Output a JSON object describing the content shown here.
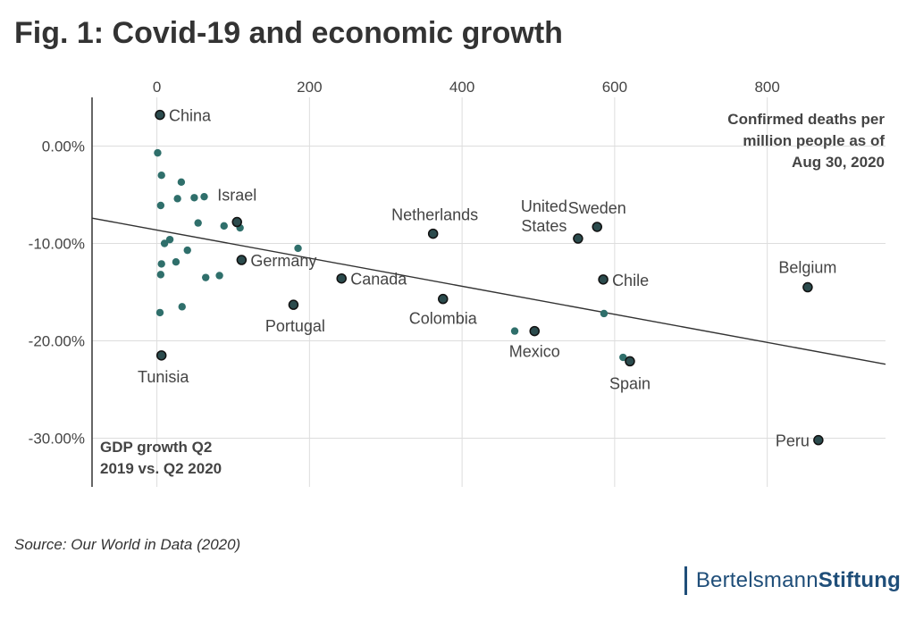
{
  "title": "Fig. 1: Covid-19 and economic growth",
  "source": "Source: Our World in Data (2020)",
  "brand": {
    "part1": "Bertelsmann",
    "part2": "Stiftung"
  },
  "colors": {
    "point": "#2f6f6b",
    "highlight": "#2b4b4d",
    "grid": "#dddddd",
    "axis": "#333333",
    "brand": "#1f4e79"
  },
  "chart_data": {
    "type": "scatter",
    "title": "Fig. 1: Covid-19 and economic growth",
    "xlabel_lines": [
      "Confirmed deaths per",
      "million people as of",
      "Aug 30, 2020"
    ],
    "ylabel_lines": [
      "GDP growth Q2",
      "2019 vs. Q2 2020"
    ],
    "xlim": [
      -85,
      955
    ],
    "ylim": [
      -35,
      5
    ],
    "xticks": [
      0,
      200,
      400,
      600,
      800
    ],
    "xtick_labels": [
      "0",
      "200",
      "400",
      "600",
      "800"
    ],
    "yticks": [
      0,
      -10,
      -20,
      -30
    ],
    "ytick_labels": [
      "0.00%",
      "-10.00%",
      "-20.00%",
      "-30.00%"
    ],
    "trendline": {
      "x0": -85,
      "y0": -7.4,
      "x1": 955,
      "y1": -22.4
    },
    "labeled_points": [
      {
        "label": "China",
        "x": 4,
        "y": 3.2
      },
      {
        "label": "Israel",
        "x": 105,
        "y": -7.8
      },
      {
        "label": "Germany",
        "x": 111,
        "y": -11.7
      },
      {
        "label": "Portugal",
        "x": 179,
        "y": -16.3
      },
      {
        "label": "Tunisia",
        "x": 6,
        "y": -21.5
      },
      {
        "label": "Netherlands",
        "x": 362,
        "y": -9.0
      },
      {
        "label": "Canada",
        "x": 242,
        "y": -13.6
      },
      {
        "label": "Colombia",
        "x": 375,
        "y": -15.7
      },
      {
        "label": "Sweden",
        "x": 577,
        "y": -8.3
      },
      {
        "label": "United States",
        "x": 552,
        "y": -9.5
      },
      {
        "label": "Chile",
        "x": 585,
        "y": -13.7
      },
      {
        "label": "Mexico",
        "x": 495,
        "y": -19.0
      },
      {
        "label": "Spain",
        "x": 620,
        "y": -22.1
      },
      {
        "label": "Belgium",
        "x": 853,
        "y": -14.5
      },
      {
        "label": "Peru",
        "x": 867,
        "y": -30.2
      }
    ],
    "unlabeled_points": [
      {
        "x": 1,
        "y": -0.7
      },
      {
        "x": 6,
        "y": -3.0
      },
      {
        "x": 32,
        "y": -3.7
      },
      {
        "x": 5,
        "y": -6.1
      },
      {
        "x": 27,
        "y": -5.4
      },
      {
        "x": 49,
        "y": -5.3
      },
      {
        "x": 62,
        "y": -5.2
      },
      {
        "x": 54,
        "y": -7.9
      },
      {
        "x": 88,
        "y": -8.2
      },
      {
        "x": 109,
        "y": -8.4
      },
      {
        "x": 10,
        "y": -10.0
      },
      {
        "x": 17,
        "y": -9.6
      },
      {
        "x": 40,
        "y": -10.7
      },
      {
        "x": 6,
        "y": -12.1
      },
      {
        "x": 25,
        "y": -11.9
      },
      {
        "x": 5,
        "y": -13.2
      },
      {
        "x": 64,
        "y": -13.5
      },
      {
        "x": 82,
        "y": -13.3
      },
      {
        "x": 185,
        "y": -10.5
      },
      {
        "x": 4,
        "y": -17.1
      },
      {
        "x": 33,
        "y": -16.5
      },
      {
        "x": 469,
        "y": -19.0
      },
      {
        "x": 586,
        "y": -17.2
      },
      {
        "x": 611,
        "y": -21.7
      }
    ]
  }
}
